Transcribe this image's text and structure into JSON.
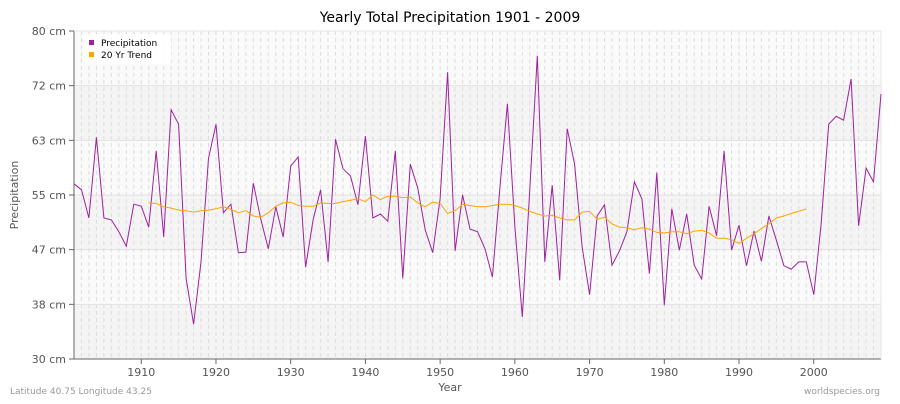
{
  "chart_data": {
    "type": "line",
    "title": "Yearly Total Precipitation 1901 - 2009",
    "xlabel": "Year",
    "ylabel": "Precipitation",
    "xlim": [
      1901,
      2009
    ],
    "ylim": [
      30,
      80
    ],
    "x_ticks": [
      1910,
      1920,
      1930,
      1940,
      1950,
      1960,
      1970,
      1980,
      1990,
      2000
    ],
    "y_ticks": [
      {
        "value": 30,
        "label": "30 cm"
      },
      {
        "value": 38.33,
        "label": "38 cm"
      },
      {
        "value": 46.67,
        "label": "47 cm"
      },
      {
        "value": 55,
        "label": "55 cm"
      },
      {
        "value": 63.33,
        "label": "63 cm"
      },
      {
        "value": 71.67,
        "label": "72 cm"
      },
      {
        "value": 80,
        "label": "80 cm"
      }
    ],
    "grid": true,
    "legend_position": "top-left",
    "series": [
      {
        "name": "Precipitation",
        "color": "#a020a0",
        "start_year": 1901,
        "values": [
          56.7,
          55.8,
          51.5,
          63.8,
          51.5,
          51.2,
          49.4,
          47.2,
          53.6,
          53.3,
          50.1,
          61.7,
          48.6,
          68.0,
          65.8,
          42.3,
          35.3,
          44.8,
          60.6,
          65.8,
          52.3,
          53.6,
          46.2,
          46.3,
          56.8,
          51.3,
          46.8,
          53.2,
          48.6,
          59.4,
          60.8,
          44.0,
          51.2,
          55.8,
          44.8,
          63.5,
          59.0,
          57.9,
          53.5,
          64.0,
          51.5,
          52.1,
          51.0,
          61.7,
          42.3,
          59.7,
          56.1,
          49.7,
          46.2,
          54.4,
          73.7,
          46.5,
          55.0,
          49.8,
          49.4,
          46.8,
          42.5,
          56.1,
          68.9,
          50.1,
          36.4,
          55.9,
          76.2,
          44.8,
          56.5,
          42.0,
          65.1,
          59.7,
          47.1,
          39.8,
          51.8,
          53.5,
          44.3,
          46.5,
          49.4,
          57.0,
          54.4,
          43.0,
          58.4,
          38.2,
          52.9,
          46.6,
          52.1,
          44.3,
          42.2,
          53.3,
          48.8,
          61.7,
          46.6,
          50.4,
          44.2,
          49.5,
          44.9,
          51.8,
          48.1,
          44.2,
          43.7,
          44.8,
          44.8,
          39.8,
          50.7,
          65.8,
          67.0,
          66.4,
          72.7,
          50.3,
          59.1,
          57.0,
          70.4
        ]
      },
      {
        "name": "20 Yr Trend",
        "color": "#ffa500",
        "start_year": 1911,
        "values": [
          53.8,
          53.7,
          53.2,
          53.0,
          52.7,
          52.6,
          52.4,
          52.6,
          52.7,
          52.9,
          53.2,
          52.8,
          52.3,
          52.6,
          51.8,
          51.6,
          52.3,
          53.3,
          53.8,
          53.9,
          53.4,
          53.3,
          53.3,
          53.8,
          53.7,
          53.7,
          54.0,
          54.2,
          54.4,
          54.0,
          55.0,
          54.3,
          54.8,
          54.8,
          54.6,
          54.7,
          53.8,
          53.2,
          53.9,
          53.7,
          52.2,
          52.6,
          53.6,
          53.4,
          53.2,
          53.2,
          53.4,
          53.6,
          53.6,
          53.4,
          53.0,
          52.5,
          52.1,
          51.8,
          51.9,
          51.5,
          51.2,
          51.2,
          52.4,
          52.5,
          51.3,
          51.6,
          50.6,
          50.1,
          50.0,
          49.7,
          50.0,
          49.8,
          49.3,
          49.2,
          49.4,
          49.4,
          49.1,
          49.5,
          49.6,
          49.2,
          48.4,
          48.4,
          48.2,
          47.6,
          48.4,
          49.1,
          49.9,
          50.6,
          51.5,
          51.8,
          52.2,
          52.5,
          52.9
        ]
      }
    ]
  },
  "footer": {
    "location": "Latitude 40.75 Longitude 43.25",
    "source": "worldspecies.org"
  }
}
